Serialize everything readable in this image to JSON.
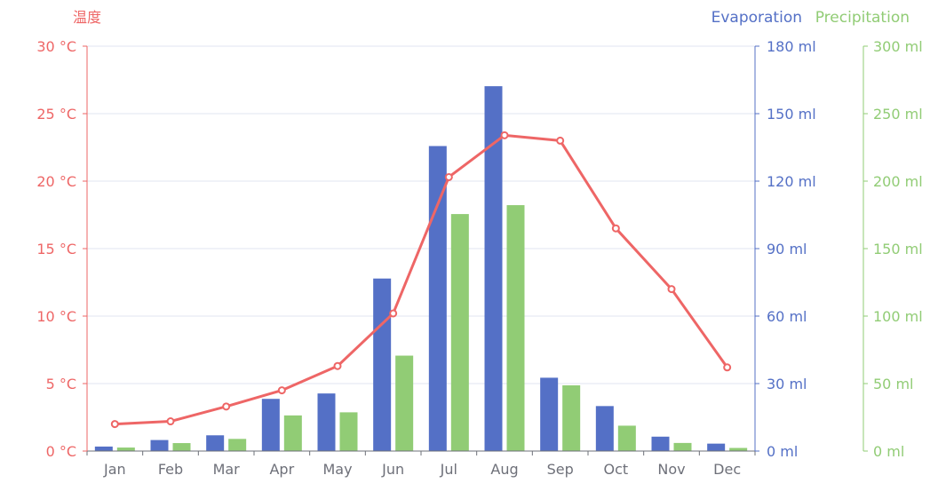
{
  "chart_data": {
    "type": "bar",
    "categories": [
      "Jan",
      "Feb",
      "Mar",
      "Apr",
      "May",
      "Jun",
      "Jul",
      "Aug",
      "Sep",
      "Oct",
      "Nov",
      "Dec"
    ],
    "series": [
      {
        "name": "Evaporation",
        "kind": "bar",
        "axis": "evaporation",
        "color": "#5470c6",
        "values": [
          2.0,
          4.9,
          7.0,
          23.2,
          25.6,
          76.7,
          135.6,
          162.2,
          32.6,
          20.0,
          6.4,
          3.3
        ]
      },
      {
        "name": "Precipitation",
        "kind": "bar",
        "axis": "precipitation",
        "color": "#91cc75",
        "values": [
          2.6,
          5.9,
          9.0,
          26.4,
          28.7,
          70.7,
          175.6,
          182.2,
          48.7,
          18.8,
          6.0,
          2.3
        ]
      },
      {
        "kind": "line",
        "axis": "temperature",
        "color": "#ee6666",
        "values": [
          2.0,
          2.2,
          3.3,
          4.5,
          6.3,
          10.2,
          20.3,
          23.4,
          23.0,
          16.5,
          12.0,
          6.2
        ]
      }
    ],
    "y_axes": {
      "temperature": {
        "name": "温度",
        "color": "#ee6666",
        "ticks": [
          "0 °C",
          "5 °C",
          "10 °C",
          "15 °C",
          "20 °C",
          "25 °C",
          "30 °C"
        ],
        "ylim": [
          0,
          30
        ],
        "position": "left"
      },
      "evaporation": {
        "name": "",
        "color": "#5470c6",
        "ticks": [
          "0 ml",
          "30 ml",
          "60 ml",
          "90 ml",
          "120 ml",
          "150 ml",
          "180 ml"
        ],
        "ylim": [
          0,
          180
        ],
        "position": "right"
      },
      "precipitation": {
        "name": "",
        "color": "#91cc75",
        "ticks": [
          "0 ml",
          "50 ml",
          "100 ml",
          "150 ml",
          "200 ml",
          "250 ml",
          "300 ml"
        ],
        "ylim": [
          0,
          300
        ],
        "position": "right-outer"
      }
    },
    "legend": {
      "items": [
        {
          "label": "Evaporation",
          "color": "#5470c6"
        },
        {
          "label": "Precipitation",
          "color": "#91cc75"
        }
      ],
      "placement": "top-right"
    },
    "grid": true
  }
}
